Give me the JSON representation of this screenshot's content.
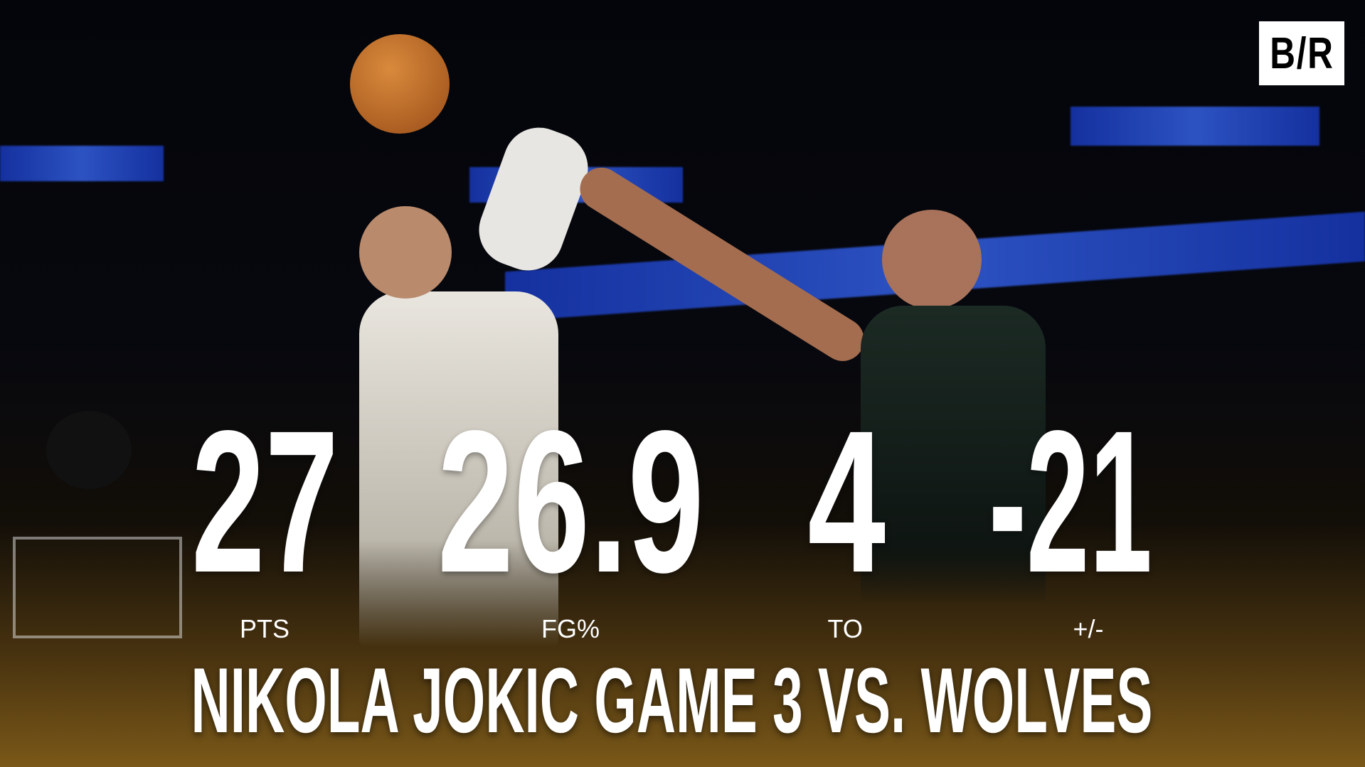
{
  "brand": {
    "logo_text": "B/R"
  },
  "stats": [
    {
      "value": "27",
      "label": "PTS"
    },
    {
      "value": "26.9",
      "label": "FG%"
    },
    {
      "value": "4",
      "label": "TO"
    },
    {
      "value": "-21",
      "label": "+/-"
    }
  ],
  "title": "NIKOLA JOKIC GAME 3 VS. WOLVES",
  "colors": {
    "text": "#ffffff",
    "gradient_bottom": "#7a5818",
    "background": "#050507"
  }
}
